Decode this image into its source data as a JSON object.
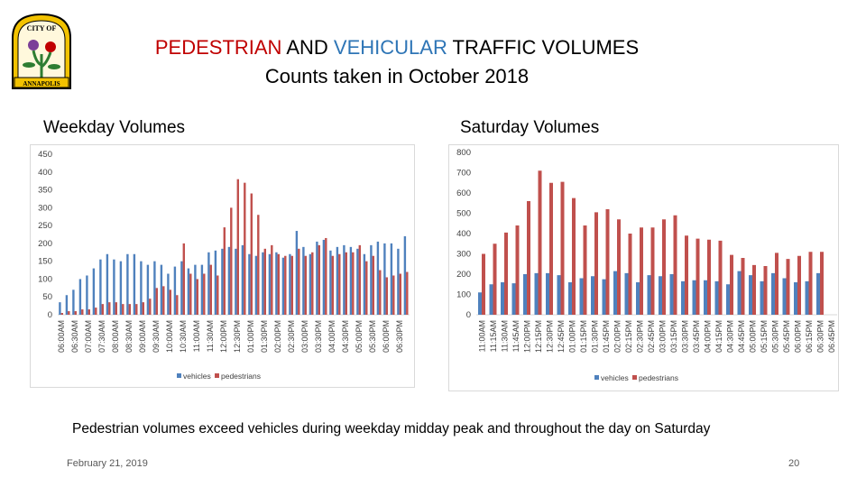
{
  "slide": {
    "title_part1": "PEDESTRIAN",
    "title_part2": " AND ",
    "title_part3": "VEHICULAR",
    "title_part4": " TRAFFIC VOLUMES",
    "subtitle": "Counts taken in October 2018",
    "weekday_label": "Weekday Volumes",
    "saturday_label": "Saturday Volumes",
    "caption": "Pedestrian volumes exceed vehicles during weekday midday peak and throughout the day on Saturday",
    "footer_date": "February 21, 2019",
    "page_number": "20",
    "logo_text_top": "CITY OF",
    "logo_text_bottom": "ANNAPOLIS"
  },
  "colors": {
    "title_red": "#c00000",
    "title_blue": "#2e75b6",
    "vehicles": "#4f81bd",
    "pedestrians": "#c0504d"
  },
  "chart_data": [
    {
      "type": "bar",
      "title": "Weekday Volumes",
      "categories": [
        "06:00AM",
        "06:15AM",
        "06:30AM",
        "06:45AM",
        "07:00AM",
        "07:15AM",
        "07:30AM",
        "07:45AM",
        "08:00AM",
        "08:15AM",
        "08:30AM",
        "08:45AM",
        "09:00AM",
        "09:15AM",
        "09:30AM",
        "09:45AM",
        "10:00AM",
        "10:15AM",
        "10:30AM",
        "10:45AM",
        "11:00AM",
        "11:15AM",
        "11:30AM",
        "11:45AM",
        "12:00PM",
        "12:15PM",
        "12:30PM",
        "12:45PM",
        "01:00PM",
        "01:15PM",
        "01:30PM",
        "01:45PM",
        "02:00PM",
        "02:15PM",
        "02:30PM",
        "02:45PM",
        "03:00PM",
        "03:15PM",
        "03:30PM",
        "03:45PM",
        "04:00PM",
        "04:15PM",
        "04:30PM",
        "04:45PM",
        "05:00PM",
        "05:15PM",
        "05:30PM",
        "05:45PM",
        "06:00PM",
        "06:15PM",
        "06:30PM",
        "06:45PM"
      ],
      "tick_labels": [
        "06:00AM",
        "06:30AM",
        "07:00AM",
        "07:30AM",
        "08:00AM",
        "08:30AM",
        "09:00AM",
        "09:30AM",
        "10:00AM",
        "10:30AM",
        "11:00AM",
        "11:30AM",
        "12:00PM",
        "12:30PM",
        "01:00PM",
        "01:30PM",
        "02:00PM",
        "02:30PM",
        "03:00PM",
        "03:30PM",
        "04:00PM",
        "04:30PM",
        "05:00PM",
        "05:30PM",
        "06:00PM",
        "06:30PM"
      ],
      "series": [
        {
          "name": "vehicles",
          "values": [
            35,
            55,
            70,
            100,
            110,
            130,
            155,
            170,
            155,
            150,
            170,
            170,
            150,
            140,
            150,
            140,
            115,
            135,
            150,
            130,
            140,
            140,
            175,
            180,
            185,
            190,
            185,
            195,
            170,
            165,
            175,
            170,
            175,
            160,
            170,
            235,
            190,
            170,
            205,
            210,
            180,
            190,
            195,
            190,
            185,
            170,
            195,
            205,
            200,
            200,
            185,
            220
          ]
        },
        {
          "name": "pedestrians",
          "values": [
            5,
            10,
            10,
            15,
            15,
            20,
            30,
            35,
            35,
            30,
            30,
            30,
            35,
            45,
            75,
            80,
            70,
            55,
            200,
            115,
            100,
            115,
            140,
            110,
            245,
            300,
            380,
            370,
            340,
            280,
            185,
            195,
            170,
            165,
            165,
            185,
            165,
            175,
            195,
            215,
            165,
            170,
            175,
            175,
            195,
            150,
            165,
            125,
            105,
            110,
            115,
            120
          ]
        }
      ],
      "ylim": [
        0,
        450
      ],
      "yticks": [
        0,
        50,
        100,
        150,
        200,
        250,
        300,
        350,
        400,
        450
      ],
      "legend": "bottom",
      "grid": false
    },
    {
      "type": "bar",
      "title": "Saturday Volumes",
      "categories": [
        "11:00AM",
        "11:15AM",
        "11:30AM",
        "11:45AM",
        "12:00PM",
        "12:15PM",
        "12:30PM",
        "12:45PM",
        "01:00PM",
        "01:15PM",
        "01:30PM",
        "01:45PM",
        "02:00PM",
        "02:15PM",
        "02:30PM",
        "02:45PM",
        "03:00PM",
        "03:15PM",
        "03:30PM",
        "03:45PM",
        "04:00PM",
        "04:15PM",
        "04:30PM",
        "04:45PM",
        "05:00PM",
        "05:15PM",
        "05:30PM",
        "05:45PM",
        "06:00PM",
        "06:15PM",
        "06:30PM",
        "06:45PM"
      ],
      "tick_labels": [
        "11:00AM",
        "11:15AM",
        "11:30AM",
        "11:45AM",
        "12:00PM",
        "12:15PM",
        "12:30PM",
        "12:45PM",
        "01:00PM",
        "01:15PM",
        "01:30PM",
        "01:45PM",
        "02:00PM",
        "02:15PM",
        "02:30PM",
        "02:45PM",
        "03:00PM",
        "03:15PM",
        "03:30PM",
        "03:45PM",
        "04:00PM",
        "04:15PM",
        "04:30PM",
        "04:45PM",
        "05:00PM",
        "05:15PM",
        "05:30PM",
        "05:45PM",
        "06:00PM",
        "06:15PM",
        "06:30PM",
        "06:45PM"
      ],
      "series": [
        {
          "name": "vehicles",
          "values": [
            110,
            150,
            160,
            155,
            200,
            205,
            205,
            195,
            160,
            180,
            190,
            175,
            215,
            205,
            160,
            195,
            190,
            200,
            165,
            170,
            170,
            165,
            150,
            215,
            195,
            165,
            205,
            180,
            160,
            165,
            205,
            0
          ]
        },
        {
          "name": "pedestrians",
          "values": [
            300,
            350,
            405,
            440,
            560,
            710,
            650,
            655,
            575,
            440,
            505,
            520,
            470,
            400,
            430,
            430,
            470,
            490,
            390,
            375,
            370,
            365,
            295,
            280,
            245,
            240,
            305,
            275,
            290,
            310,
            310,
            0
          ]
        }
      ],
      "ylim": [
        0,
        800
      ],
      "yticks": [
        0,
        100,
        200,
        300,
        400,
        500,
        600,
        700,
        800
      ],
      "legend": "bottom",
      "grid": false
    }
  ]
}
